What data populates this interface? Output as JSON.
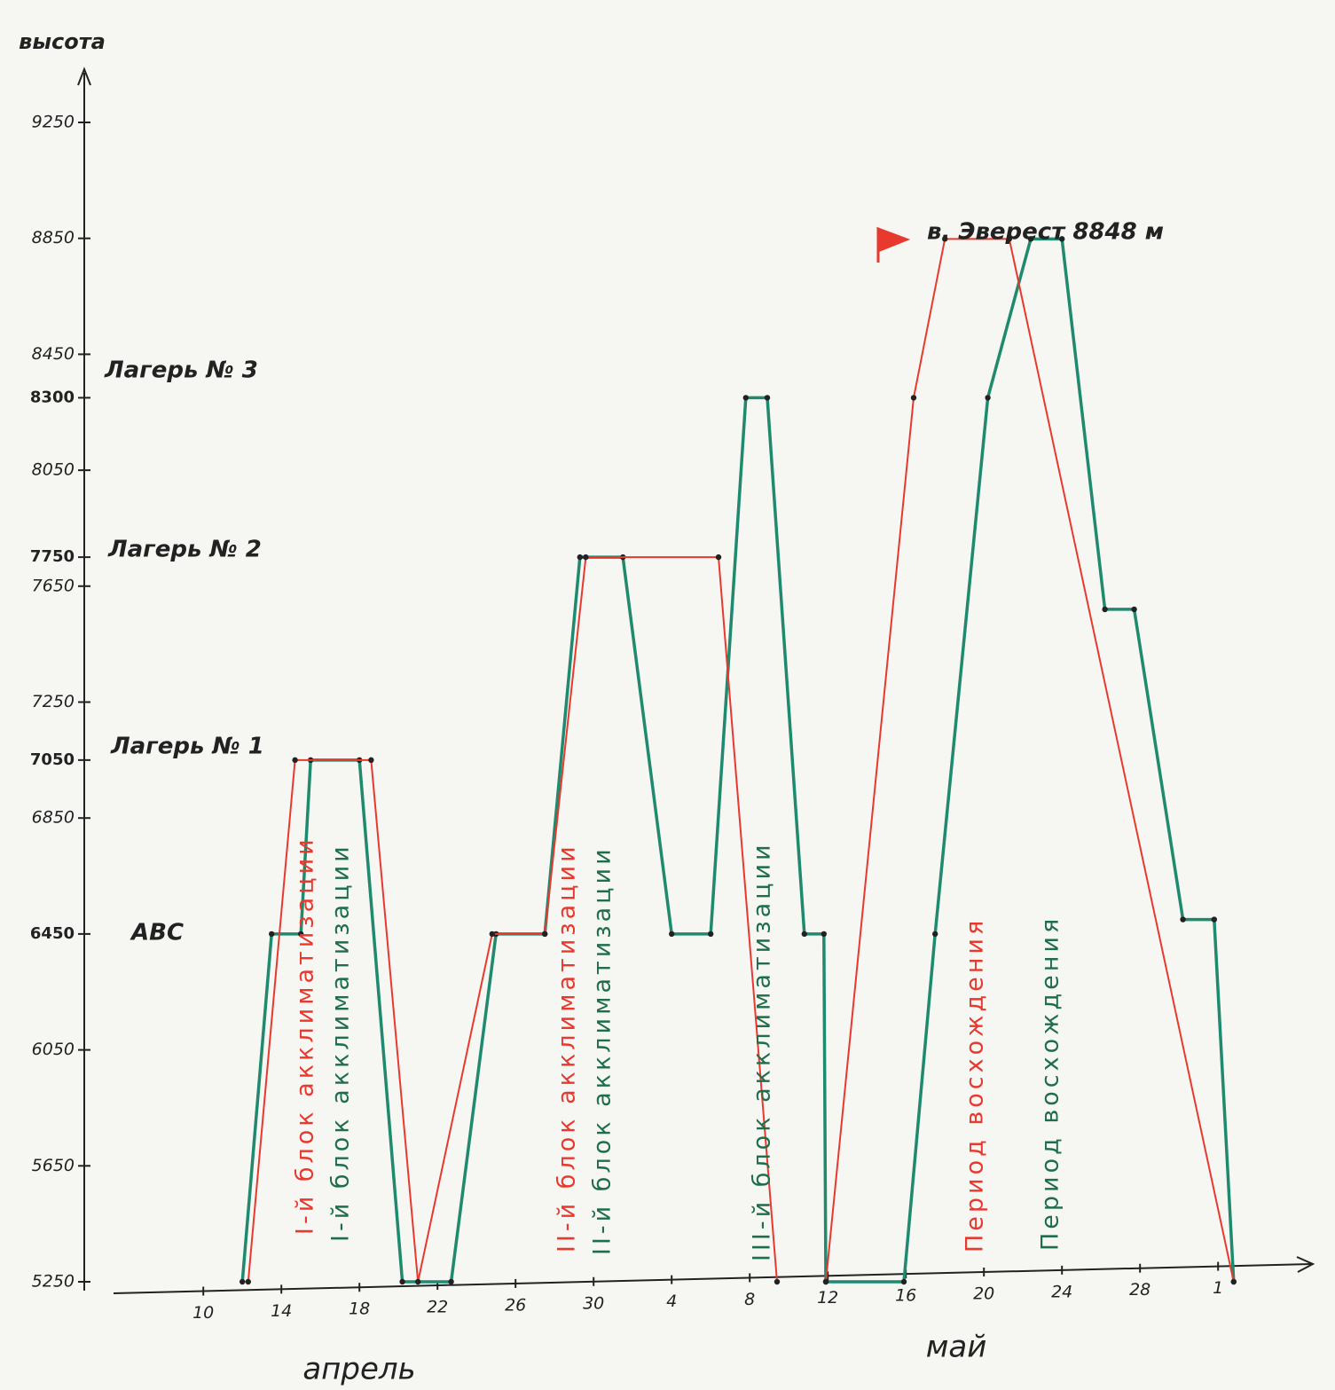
{
  "chart_data": {
    "type": "line",
    "y_label": "высота",
    "xlim": [
      5.4,
      66.4
    ],
    "ylim": [
      5250,
      9250
    ],
    "xticks": [
      10,
      14,
      18,
      22,
      26,
      30,
      {
        "value": 34,
        "label": "4"
      },
      {
        "value": 38,
        "label": "8"
      },
      {
        "value": 42,
        "label": "12"
      },
      {
        "value": 46,
        "label": "16"
      },
      {
        "value": 50,
        "label": "20"
      },
      {
        "value": 54,
        "label": "24"
      },
      {
        "value": 58,
        "label": "28"
      },
      {
        "value": 62,
        "label": "1"
      }
    ],
    "yticks": [
      5250,
      5650,
      6050,
      6450,
      6850,
      7050,
      7250,
      7650,
      7750,
      8050,
      8300,
      8450,
      8850,
      9250
    ],
    "grid": false,
    "series": [
      {
        "color": "#1f8a6e",
        "x": [
          12,
          13.5,
          15,
          15.5,
          18,
          20.2,
          22.7,
          25,
          27.5,
          29.3,
          31.5,
          34,
          36,
          37.8,
          38.9,
          40.8,
          41.8,
          41.9,
          45.9,
          47.5,
          50.2,
          52.4,
          54,
          56.2,
          57.7,
          60.2,
          61.8,
          62.8
        ],
        "values": [
          5250,
          6450,
          6450,
          7050,
          7050,
          5250,
          5250,
          6450,
          6450,
          7750,
          7750,
          6450,
          6450,
          8300,
          8300,
          6450,
          6450,
          5250,
          5250,
          6450,
          8300,
          8848,
          8848,
          7570,
          7570,
          6500,
          6500,
          5250
        ]
      },
      {
        "color": "#e8392f",
        "x": [
          12.3,
          14.7,
          18.6,
          21,
          24.8,
          27.5,
          29.6,
          36.4,
          39.4,
          null,
          41.9,
          46.4,
          48,
          51.3,
          62.8
        ],
        "values": [
          5250,
          7050,
          7050,
          5250,
          6450,
          6450,
          7750,
          7750,
          5250,
          null,
          5250,
          8300,
          8848,
          8848,
          5250
        ]
      }
    ],
    "annotations": [
      "Лагерь № 3",
      "Лагерь № 2",
      "Лагерь № 1",
      "ABC",
      "в. Эверест 8848 м",
      "апрель",
      "май"
    ],
    "rotated_labels": [
      {
        "text": "I-й блок акклиматизации",
        "color": "#e8392f"
      },
      {
        "text": "I-й блок акклиматизации",
        "color": "#1f6e4a"
      },
      {
        "text": "II-й блок акклиматизации",
        "color": "#e8392f"
      },
      {
        "text": "II-й блок акклиматизации",
        "color": "#1f6e4a"
      },
      {
        "text": "III-й блок акклиматизации",
        "color": "#1f6e4a"
      },
      {
        "text": "Период восхождения",
        "color": "#e8392f"
      },
      {
        "text": "Период восхождения",
        "color": "#1f6e4a"
      }
    ]
  }
}
